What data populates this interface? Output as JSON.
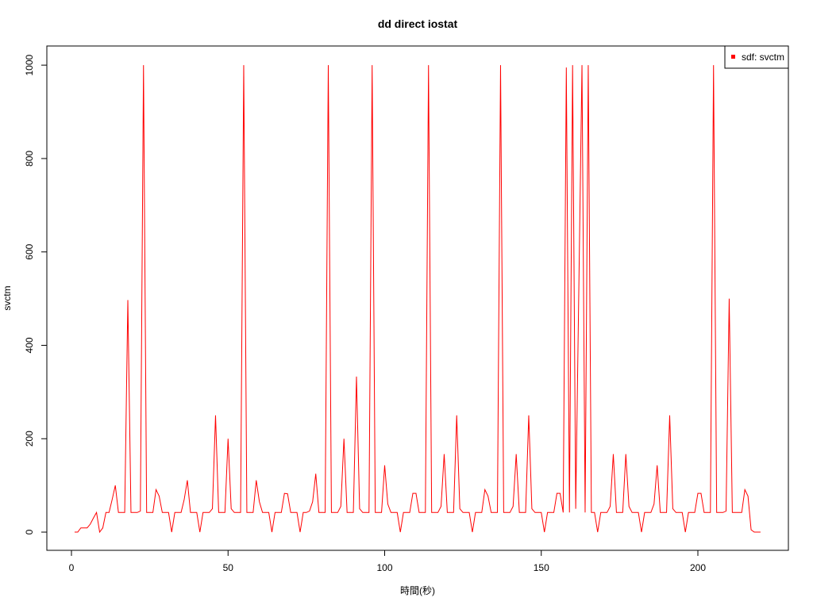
{
  "chart_data": {
    "type": "line",
    "title": "dd direct iostat",
    "x_label": "時間(秒)",
    "y_label": "svctm",
    "x": [
      1,
      2,
      3,
      4,
      5,
      6,
      7,
      8,
      9,
      10,
      11,
      12,
      13,
      14,
      15,
      16,
      17,
      18,
      19,
      20,
      21,
      22,
      23,
      24,
      25,
      26,
      27,
      28,
      29,
      30,
      31,
      32,
      33,
      34,
      35,
      36,
      37,
      38,
      39,
      40,
      41,
      42,
      43,
      44,
      45,
      46,
      47,
      48,
      49,
      50,
      51,
      52,
      53,
      54,
      55,
      56,
      57,
      58,
      59,
      60,
      61,
      62,
      63,
      64,
      65,
      66,
      67,
      68,
      69,
      70,
      71,
      72,
      73,
      74,
      75,
      76,
      77,
      78,
      79,
      80,
      81,
      82,
      83,
      84,
      85,
      86,
      87,
      88,
      89,
      90,
      91,
      92,
      93,
      94,
      95,
      96,
      97,
      98,
      99,
      100,
      101,
      102,
      103,
      104,
      105,
      106,
      107,
      108,
      109,
      110,
      111,
      112,
      113,
      114,
      115,
      116,
      117,
      118,
      119,
      120,
      121,
      122,
      123,
      124,
      125,
      126,
      127,
      128,
      129,
      130,
      131,
      132,
      133,
      134,
      135,
      136,
      137,
      138,
      139,
      140,
      141,
      142,
      143,
      144,
      145,
      146,
      147,
      148,
      149,
      150,
      151,
      152,
      153,
      154,
      155,
      156,
      157,
      158,
      159,
      160,
      161,
      162,
      163,
      164,
      165,
      166,
      167,
      168,
      169,
      170,
      171,
      172,
      173,
      174,
      175,
      176,
      177,
      178,
      179,
      180,
      181,
      182,
      183,
      184,
      185,
      186,
      187,
      188,
      189,
      190,
      191,
      192,
      193,
      194,
      195,
      196,
      197,
      198,
      199,
      200,
      201,
      202,
      203,
      204,
      205,
      206,
      207,
      208,
      209,
      210,
      211,
      212,
      213,
      214,
      215,
      216,
      217,
      218,
      219,
      220
    ],
    "series": [
      {
        "name": "sdf: svctm",
        "color": "#ff0000",
        "values": [
          0,
          0,
          9,
          9,
          9,
          17,
          30,
          42,
          0,
          9,
          42,
          42,
          70,
          100,
          42,
          42,
          42,
          497,
          42,
          42,
          42,
          45,
          1000,
          42,
          42,
          42,
          91,
          77,
          42,
          42,
          42,
          0,
          42,
          42,
          42,
          70,
          111,
          42,
          42,
          42,
          0,
          42,
          42,
          42,
          50,
          250,
          42,
          42,
          42,
          200,
          50,
          42,
          42,
          42,
          1000,
          42,
          42,
          42,
          111,
          65,
          42,
          42,
          42,
          0,
          42,
          42,
          42,
          83,
          82,
          42,
          42,
          42,
          0,
          42,
          42,
          45,
          65,
          125,
          42,
          42,
          42,
          1000,
          42,
          42,
          42,
          55,
          200,
          42,
          42,
          42,
          333,
          50,
          42,
          42,
          42,
          1000,
          42,
          42,
          42,
          143,
          60,
          42,
          42,
          42,
          0,
          42,
          42,
          42,
          83,
          83,
          42,
          42,
          42,
          1000,
          42,
          42,
          42,
          55,
          167,
          42,
          42,
          42,
          250,
          50,
          42,
          42,
          42,
          0,
          42,
          42,
          42,
          91,
          77,
          42,
          42,
          42,
          1000,
          42,
          42,
          42,
          55,
          167,
          42,
          42,
          42,
          250,
          50,
          42,
          42,
          42,
          0,
          42,
          42,
          42,
          83,
          83,
          42,
          995,
          42,
          1000,
          50,
          525,
          1000,
          42,
          1000,
          42,
          42,
          0,
          42,
          42,
          42,
          55,
          167,
          42,
          42,
          42,
          167,
          55,
          42,
          42,
          42,
          0,
          42,
          42,
          42,
          60,
          143,
          42,
          42,
          42,
          250,
          50,
          42,
          42,
          42,
          0,
          42,
          42,
          42,
          83,
          83,
          42,
          42,
          42,
          1000,
          42,
          42,
          42,
          45,
          500,
          42,
          42,
          42,
          42,
          91,
          77,
          5,
          0,
          0,
          0
        ]
      }
    ],
    "xlim": [
      -7.86,
      228.9
    ],
    "ylim": [
      -39,
      1041
    ],
    "xticks": [
      0,
      50,
      100,
      150,
      200
    ],
    "yticks": [
      0,
      200,
      400,
      600,
      800,
      1000
    ],
    "legend": "top-right"
  }
}
